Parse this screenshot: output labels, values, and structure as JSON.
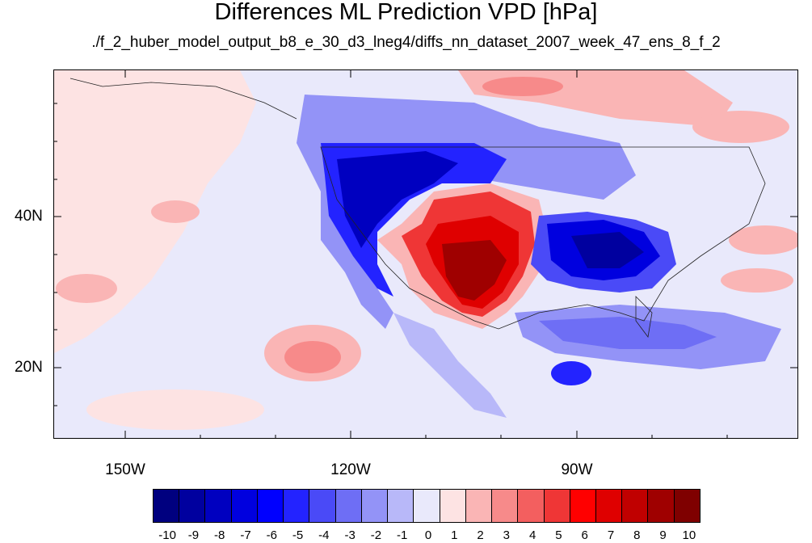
{
  "title": "Differences ML Prediction VPD [hPa]",
  "subtitle": "./f_2_huber_model_output_b8_e_30_d3_lneg4/diffs_nn_dataset_2007_week_47_ens_8_f_2",
  "map": {
    "lat_labels": [
      "40N",
      "20N"
    ],
    "lon_labels": [
      "150W",
      "120W",
      "90W"
    ]
  },
  "colorbar": {
    "labels": [
      "-10",
      "-9",
      "-8",
      "-7",
      "-6",
      "-5",
      "-4",
      "-3",
      "-2",
      "-1",
      "0",
      "1",
      "2",
      "3",
      "4",
      "5",
      "6",
      "7",
      "8",
      "9",
      "10"
    ],
    "colors": [
      "#00007f",
      "#00009f",
      "#0000c0",
      "#0000df",
      "#0000ff",
      "#2323ff",
      "#4a4af7",
      "#6e6ef5",
      "#9393f7",
      "#b8b8f9",
      "#e9e9fb",
      "#fde3e3",
      "#fab5b5",
      "#f78a8a",
      "#f35f5f",
      "#ef3636",
      "#ff0000",
      "#df0000",
      "#c00000",
      "#9f0000",
      "#7f0000"
    ]
  }
}
